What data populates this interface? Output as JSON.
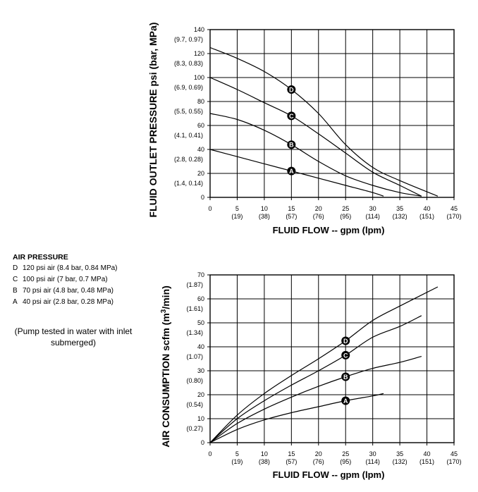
{
  "legend": {
    "title": "AIR PRESSURE",
    "items": [
      {
        "key": "D",
        "label": "120 psi air (8.4 bar, 0.84 MPa)"
      },
      {
        "key": "C",
        "label": "100 psi air (7 bar, 0.7 MPa)"
      },
      {
        "key": "B",
        "label": "70 psi air (4.8 bar, 0.48 MPa)"
      },
      {
        "key": "A",
        "label": "40 psi air (2.8 bar, 0.28 MPa)"
      }
    ]
  },
  "note": "(Pump tested in water with inlet submerged)",
  "chart_data": [
    {
      "type": "line",
      "xlabel": "FLUID FLOW -- gpm (lpm)",
      "ylabel": "FLUID OUTLET PRESSURE psi (bar, MPa)",
      "xlim": [
        0,
        45
      ],
      "ylim": [
        0,
        140
      ],
      "grid": true,
      "x_ticks": [
        {
          "v": 0,
          "main": "0",
          "sub": ""
        },
        {
          "v": 5,
          "main": "5",
          "sub": "(19)"
        },
        {
          "v": 10,
          "main": "10",
          "sub": "(38)"
        },
        {
          "v": 15,
          "main": "15",
          "sub": "(57)"
        },
        {
          "v": 20,
          "main": "20",
          "sub": "(76)"
        },
        {
          "v": 25,
          "main": "25",
          "sub": "(95)"
        },
        {
          "v": 30,
          "main": "30",
          "sub": "(114)"
        },
        {
          "v": 35,
          "main": "35",
          "sub": "(132)"
        },
        {
          "v": 40,
          "main": "40",
          "sub": "(151)"
        },
        {
          "v": 45,
          "main": "45",
          "sub": "(170)"
        }
      ],
      "y_ticks": [
        {
          "v": 0,
          "main": "0",
          "sub": ""
        },
        {
          "v": 20,
          "main": "20",
          "sub": "(1.4, 0.14)"
        },
        {
          "v": 40,
          "main": "40",
          "sub": "(2.8, 0.28)"
        },
        {
          "v": 60,
          "main": "60",
          "sub": "(4.1, 0.41)"
        },
        {
          "v": 80,
          "main": "80",
          "sub": "(5.5, 0.55)"
        },
        {
          "v": 100,
          "main": "100",
          "sub": "(6.9, 0.69)"
        },
        {
          "v": 120,
          "main": "120",
          "sub": "(8.3, 0.83)"
        },
        {
          "v": 140,
          "main": "140",
          "sub": "(9.7, 0.97)"
        }
      ],
      "series": [
        {
          "name": "A",
          "marker_x": 15,
          "points": [
            [
              0,
              40
            ],
            [
              5,
              34
            ],
            [
              10,
              28
            ],
            [
              15,
              22
            ],
            [
              20,
              16
            ],
            [
              25,
              10
            ],
            [
              30,
              4
            ],
            [
              32,
              1
            ]
          ]
        },
        {
          "name": "B",
          "points": [
            [
              0,
              70
            ],
            [
              5,
              65
            ],
            [
              10,
              56
            ],
            [
              15,
              44
            ],
            [
              20,
              30
            ],
            [
              25,
              18
            ],
            [
              30,
              10
            ],
            [
              35,
              4
            ],
            [
              39,
              1
            ]
          ],
          "marker_x": 15
        },
        {
          "name": "C",
          "points": [
            [
              0,
              100
            ],
            [
              5,
              90
            ],
            [
              10,
              79
            ],
            [
              15,
              68
            ],
            [
              20,
              53
            ],
            [
              25,
              37
            ],
            [
              30,
              21
            ],
            [
              35,
              10
            ],
            [
              39,
              1
            ]
          ],
          "marker_x": 15
        },
        {
          "name": "D",
          "points": [
            [
              0,
              125
            ],
            [
              5,
              116
            ],
            [
              10,
              105
            ],
            [
              15,
              90
            ],
            [
              20,
              70
            ],
            [
              25,
              44
            ],
            [
              30,
              25
            ],
            [
              35,
              14
            ],
            [
              42,
              1
            ]
          ],
          "marker_x": 15
        }
      ]
    },
    {
      "type": "line",
      "xlabel": "FLUID FLOW -- gpm (lpm)",
      "ylabel": "AIR CONSUMPTION scfm (m3/min)",
      "xlim": [
        0,
        45
      ],
      "ylim": [
        0,
        70
      ],
      "grid": true,
      "x_ticks": [
        {
          "v": 0,
          "main": "0",
          "sub": ""
        },
        {
          "v": 5,
          "main": "5",
          "sub": "(19)"
        },
        {
          "v": 10,
          "main": "10",
          "sub": "(38)"
        },
        {
          "v": 15,
          "main": "15",
          "sub": "(57)"
        },
        {
          "v": 20,
          "main": "20",
          "sub": "(76)"
        },
        {
          "v": 25,
          "main": "25",
          "sub": "(95)"
        },
        {
          "v": 30,
          "main": "30",
          "sub": "(114)"
        },
        {
          "v": 35,
          "main": "35",
          "sub": "(132)"
        },
        {
          "v": 40,
          "main": "40",
          "sub": "(151)"
        },
        {
          "v": 45,
          "main": "45",
          "sub": "(170)"
        }
      ],
      "y_ticks": [
        {
          "v": 0,
          "main": "0",
          "sub": ""
        },
        {
          "v": 10,
          "main": "10",
          "sub": "(0.27)"
        },
        {
          "v": 20,
          "main": "20",
          "sub": "(0.54)"
        },
        {
          "v": 30,
          "main": "30",
          "sub": "(0.80)"
        },
        {
          "v": 40,
          "main": "40",
          "sub": "(1.07)"
        },
        {
          "v": 50,
          "main": "50",
          "sub": "(1.34)"
        },
        {
          "v": 60,
          "main": "60",
          "sub": "(1.61)"
        },
        {
          "v": 70,
          "main": "70",
          "sub": "(1.87)"
        }
      ],
      "series": [
        {
          "name": "A",
          "marker_x": 25,
          "points": [
            [
              0,
              0
            ],
            [
              5,
              5.5
            ],
            [
              10,
              9.5
            ],
            [
              15,
              12.5
            ],
            [
              20,
              15
            ],
            [
              25,
              17.5
            ],
            [
              30,
              19.5
            ],
            [
              32,
              20.5
            ]
          ]
        },
        {
          "name": "B",
          "marker_x": 25,
          "points": [
            [
              0,
              0
            ],
            [
              5,
              8
            ],
            [
              10,
              14
            ],
            [
              15,
              19
            ],
            [
              20,
              23.5
            ],
            [
              25,
              27.5
            ],
            [
              30,
              31
            ],
            [
              35,
              33.5
            ],
            [
              39,
              36
            ]
          ]
        },
        {
          "name": "C",
          "marker_x": 25,
          "points": [
            [
              0,
              0
            ],
            [
              5,
              10
            ],
            [
              10,
              17.5
            ],
            [
              15,
              24
            ],
            [
              20,
              30
            ],
            [
              25,
              36.5
            ],
            [
              30,
              44
            ],
            [
              35,
              48.5
            ],
            [
              39,
              53
            ]
          ]
        },
        {
          "name": "D",
          "marker_x": 25,
          "points": [
            [
              0,
              0
            ],
            [
              5,
              11.5
            ],
            [
              10,
              20.5
            ],
            [
              15,
              28
            ],
            [
              20,
              35
            ],
            [
              25,
              42.5
            ],
            [
              30,
              51
            ],
            [
              35,
              57
            ],
            [
              42,
              65
            ]
          ]
        }
      ]
    }
  ]
}
